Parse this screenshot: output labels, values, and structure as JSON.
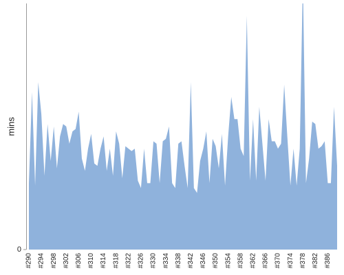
{
  "chart_data": {
    "type": "area",
    "y_label": "mins",
    "color": "#8fb2dc",
    "categories": [
      "#290",
      null,
      null,
      null,
      "#294",
      null,
      null,
      null,
      "#298",
      null,
      null,
      null,
      "#302",
      null,
      null,
      null,
      "#306",
      null,
      null,
      null,
      "#310",
      null,
      null,
      null,
      "#314",
      null,
      null,
      null,
      "#318",
      null,
      null,
      null,
      "#322",
      null,
      null,
      null,
      "#326",
      null,
      null,
      null,
      "#330",
      null,
      null,
      null,
      "#334",
      null,
      null,
      null,
      "#338",
      null,
      null,
      null,
      "#342",
      null,
      null,
      null,
      "#346",
      null,
      null,
      null,
      "#350",
      null,
      null,
      null,
      "#354",
      null,
      null,
      null,
      "#358",
      null,
      null,
      null,
      "#362",
      null,
      null,
      null,
      "#366",
      null,
      null,
      null,
      "#370",
      null,
      null,
      null,
      "#374",
      null,
      null,
      null,
      "#378",
      null,
      null,
      null,
      "#382",
      null,
      null,
      null,
      "#386",
      null,
      null,
      null
    ],
    "values": [
      27,
      64,
      26,
      68,
      55,
      30,
      51,
      36,
      50,
      33,
      46,
      51,
      50,
      43,
      48,
      49,
      56,
      37,
      32,
      41,
      47,
      35,
      34,
      41,
      46,
      32,
      41,
      30,
      48,
      43,
      29,
      42,
      41,
      40,
      41,
      28,
      25,
      41,
      27,
      27,
      44,
      43,
      27,
      44,
      45,
      50,
      27,
      25,
      43,
      44,
      34,
      25,
      68,
      25,
      23,
      36,
      41,
      48,
      27,
      45,
      42,
      33,
      47,
      26,
      46,
      62,
      53,
      53,
      41,
      38,
      95,
      28,
      53,
      28,
      58,
      43,
      28,
      53,
      44,
      44,
      41,
      43,
      67,
      46,
      26,
      41,
      26,
      41,
      110,
      27,
      37,
      52,
      51,
      41,
      42,
      44,
      27,
      27,
      58,
      34
    ],
    "ylim": [
      0,
      100
    ],
    "yticks": [
      0
    ]
  }
}
